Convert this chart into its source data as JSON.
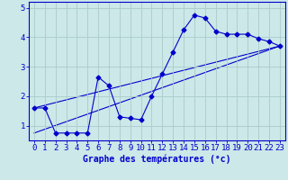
{
  "xlabel": "Graphe des températures (°c)",
  "background_color": "#cce8e8",
  "grid_color": "#aacccc",
  "line_color": "#0000cc",
  "xlim": [
    -0.5,
    23.5
  ],
  "ylim": [
    0.5,
    5.2
  ],
  "yticks": [
    1,
    2,
    3,
    4,
    5
  ],
  "xticks": [
    0,
    1,
    2,
    3,
    4,
    5,
    6,
    7,
    8,
    9,
    10,
    11,
    12,
    13,
    14,
    15,
    16,
    17,
    18,
    19,
    20,
    21,
    22,
    23
  ],
  "line1_x": [
    0,
    1,
    2,
    3,
    4,
    5,
    6,
    7,
    8,
    9,
    10,
    11,
    12,
    13,
    14,
    15,
    16,
    17,
    18,
    19,
    20,
    21,
    22,
    23
  ],
  "line1_y": [
    1.6,
    1.6,
    0.75,
    0.75,
    0.75,
    0.75,
    2.65,
    2.35,
    1.3,
    1.25,
    1.2,
    2.0,
    2.75,
    3.5,
    4.25,
    4.75,
    4.65,
    4.2,
    4.1,
    4.1,
    4.1,
    3.95,
    3.85,
    3.7
  ],
  "line2_x": [
    0,
    23
  ],
  "line2_y": [
    1.6,
    3.7
  ],
  "line3_x": [
    0,
    23
  ],
  "line3_y": [
    0.75,
    3.7
  ],
  "marker_style": "D",
  "marker_size": 2.5,
  "font_color": "#0000cc",
  "axis_label_fontsize": 7,
  "tick_fontsize": 6.5
}
